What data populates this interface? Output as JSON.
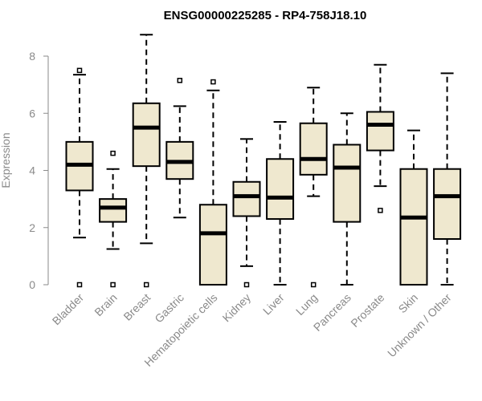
{
  "colors": {
    "box_fill": "#efe8cf",
    "stroke": "#000000",
    "axis": "#8a8a8a",
    "text_muted": "#8a8a8a"
  },
  "chart_data": {
    "type": "boxplot",
    "title": "ENSG00000225285 - RP4-758J18.10",
    "xlabel": "",
    "ylabel": "Expression",
    "ylim": [
      0,
      8.8
    ],
    "yticks": [
      0,
      2,
      4,
      6,
      8
    ],
    "grid": false,
    "categories": [
      "Bladder",
      "Brain",
      "Breast",
      "Gastric",
      "Hematopoietic cells",
      "Kidney",
      "Liver",
      "Lung",
      "Pancreas",
      "Prostate",
      "Skin",
      "Unknown / Other"
    ],
    "boxes": [
      {
        "category": "Bladder",
        "whisker_low": 1.65,
        "q1": 3.3,
        "median": 4.2,
        "q3": 5.0,
        "whisker_high": 7.35,
        "outliers": [
          0,
          7.5
        ]
      },
      {
        "category": "Brain",
        "whisker_low": 1.25,
        "q1": 2.2,
        "median": 2.7,
        "q3": 3.0,
        "whisker_high": 4.05,
        "outliers": [
          0,
          4.6
        ]
      },
      {
        "category": "Breast",
        "whisker_low": 1.45,
        "q1": 4.15,
        "median": 5.5,
        "q3": 6.35,
        "whisker_high": 8.75,
        "outliers": [
          0
        ]
      },
      {
        "category": "Gastric",
        "whisker_low": 2.35,
        "q1": 3.7,
        "median": 4.3,
        "q3": 5.0,
        "whisker_high": 6.25,
        "outliers": [
          7.15
        ]
      },
      {
        "category": "Hematopoietic cells",
        "whisker_low": 0,
        "q1": 0,
        "median": 1.8,
        "q3": 2.8,
        "whisker_high": 6.8,
        "outliers": [
          7.1
        ]
      },
      {
        "category": "Kidney",
        "whisker_low": 0.65,
        "q1": 2.4,
        "median": 3.1,
        "q3": 3.6,
        "whisker_high": 5.1,
        "outliers": [
          0
        ]
      },
      {
        "category": "Liver",
        "whisker_low": 0,
        "q1": 2.3,
        "median": 3.05,
        "q3": 4.4,
        "whisker_high": 5.7,
        "outliers": []
      },
      {
        "category": "Lung",
        "whisker_low": 3.1,
        "q1": 3.85,
        "median": 4.4,
        "q3": 5.65,
        "whisker_high": 6.9,
        "outliers": [
          0
        ]
      },
      {
        "category": "Pancreas",
        "whisker_low": 0,
        "q1": 2.2,
        "median": 4.1,
        "q3": 4.9,
        "whisker_high": 6.0,
        "outliers": []
      },
      {
        "category": "Prostate",
        "whisker_low": 3.45,
        "q1": 4.7,
        "median": 5.6,
        "q3": 6.05,
        "whisker_high": 7.7,
        "outliers": [
          2.6
        ]
      },
      {
        "category": "Skin",
        "whisker_low": 0,
        "q1": 0,
        "median": 2.35,
        "q3": 4.05,
        "whisker_high": 5.4,
        "outliers": []
      },
      {
        "category": "Unknown / Other",
        "whisker_low": 0,
        "q1": 1.6,
        "median": 3.1,
        "q3": 4.05,
        "whisker_high": 7.4,
        "outliers": []
      }
    ]
  }
}
